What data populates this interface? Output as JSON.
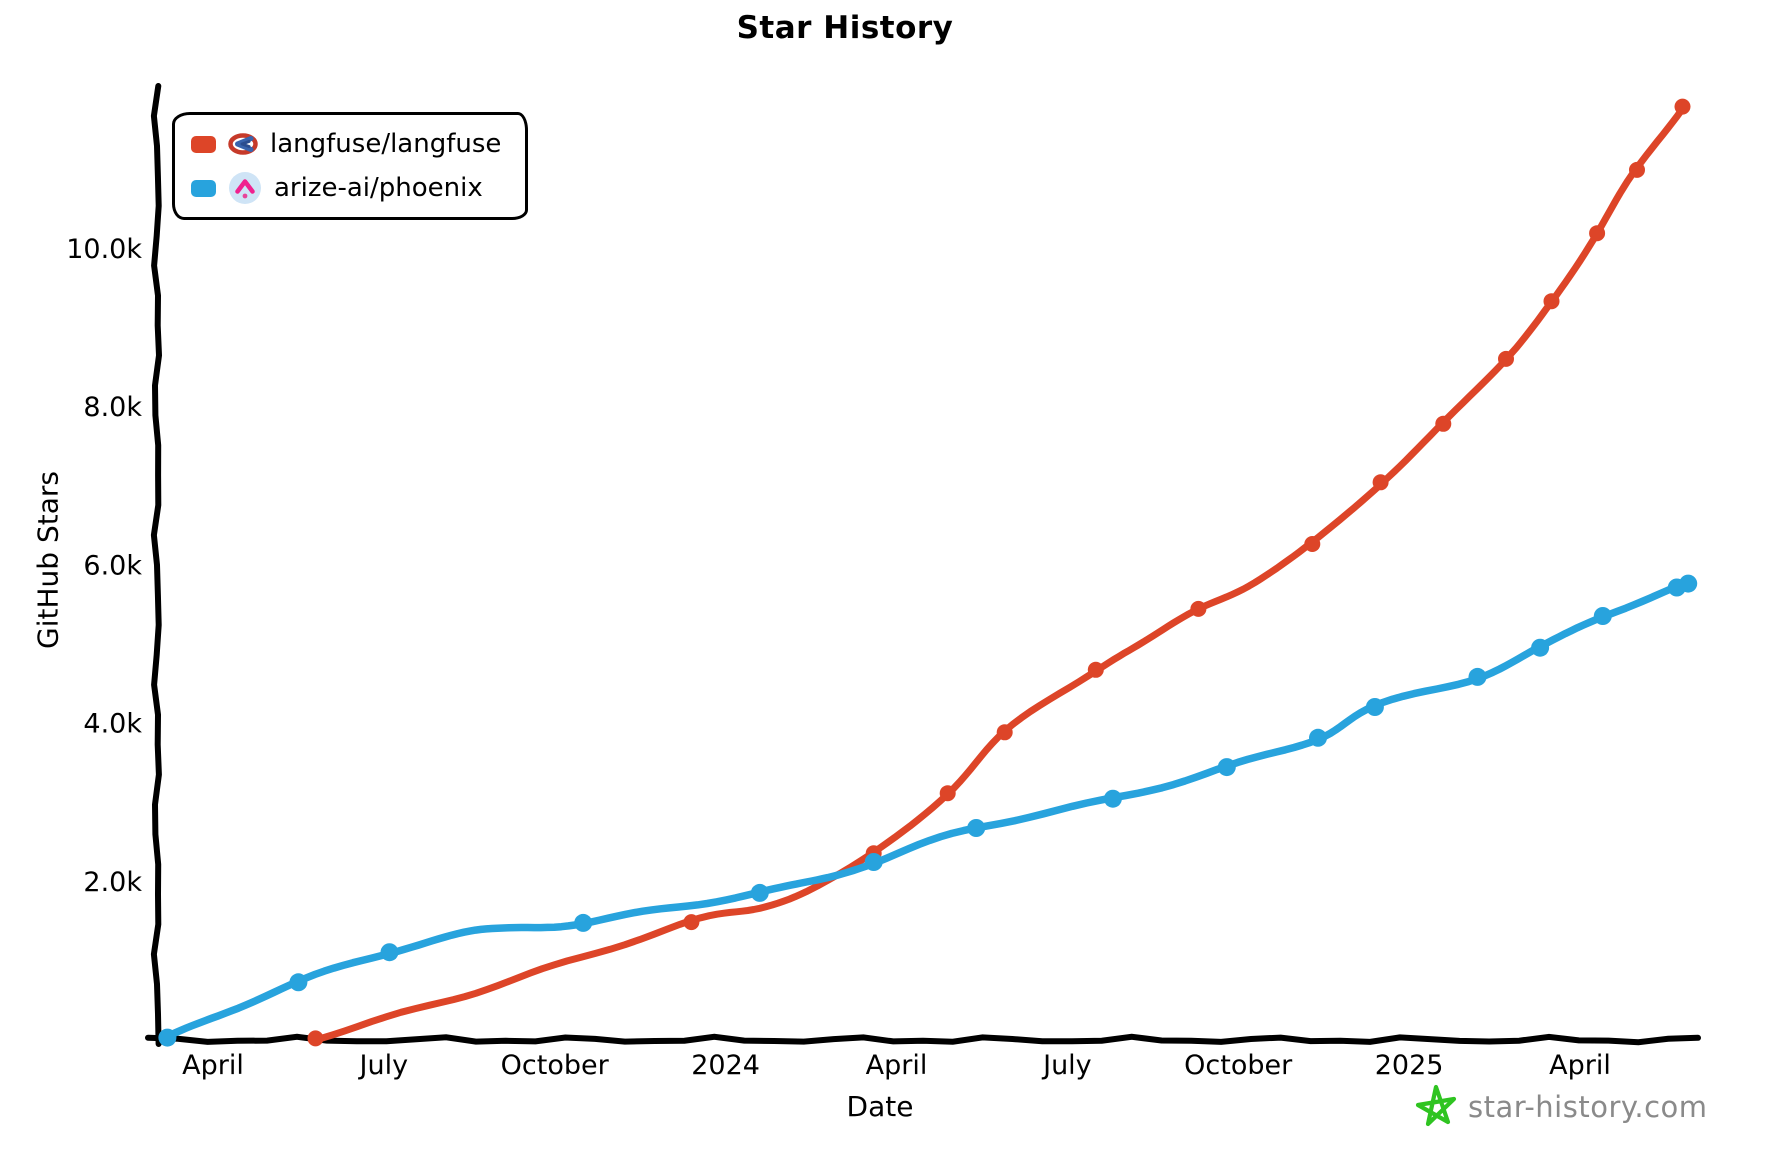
{
  "title": "Star History",
  "legend": {
    "items": [
      {
        "label": "langfuse/langfuse",
        "color": "#dd4528",
        "icon": "langfuse-logo"
      },
      {
        "label": "arize-ai/phoenix",
        "color": "#28a3dd",
        "icon": "phoenix-logo"
      }
    ]
  },
  "watermark": {
    "text": "star-history.com",
    "star_color": "#2fc421",
    "text_color": "#8a8a8a"
  },
  "chart_data": {
    "type": "line",
    "title": "Star History",
    "xlabel": "Date",
    "ylabel": "GitHub Stars",
    "grid": false,
    "legend_position": "top-left",
    "x_axis_unit": "months since 2023-03",
    "xlim_months": [
      0,
      27.3
    ],
    "ylim": [
      0,
      12100
    ],
    "x_ticks": [
      {
        "label": "April",
        "m": 1
      },
      {
        "label": "July",
        "m": 4
      },
      {
        "label": "October",
        "m": 7
      },
      {
        "label": "2024",
        "m": 10
      },
      {
        "label": "April",
        "m": 13
      },
      {
        "label": "July",
        "m": 16
      },
      {
        "label": "October",
        "m": 19
      },
      {
        "label": "2025",
        "m": 22
      },
      {
        "label": "April",
        "m": 25
      }
    ],
    "y_ticks": [
      {
        "label": "2.0k",
        "value": 2000
      },
      {
        "label": "4.0k",
        "value": 4000
      },
      {
        "label": "6.0k",
        "value": 6000
      },
      {
        "label": "8.0k",
        "value": 8000
      },
      {
        "label": "10.0k",
        "value": 10000
      }
    ],
    "series": [
      {
        "name": "langfuse/langfuse",
        "color": "#dd4528",
        "points": [
          {
            "date": "2023-05",
            "m": 2.8,
            "stars": 20,
            "dot": true
          },
          {
            "date": "2023-08",
            "m": 5.0,
            "stars": 480,
            "dot": false
          },
          {
            "date": "2023-10",
            "m": 7.0,
            "stars": 930,
            "dot": false
          },
          {
            "date": "2023-12",
            "m": 9.4,
            "stars": 1490,
            "dot": true
          },
          {
            "date": "2024-01",
            "m": 10.6,
            "stars": 1680,
            "dot": false
          },
          {
            "date": "2024-02",
            "m": 11.6,
            "stars": 1950,
            "dot": false
          },
          {
            "date": "2024-03",
            "m": 12.6,
            "stars": 2360,
            "dot": true
          },
          {
            "date": "2024-04",
            "m": 13.9,
            "stars": 3120,
            "dot": true
          },
          {
            "date": "2024-05",
            "m": 14.9,
            "stars": 3890,
            "dot": true
          },
          {
            "date": "2024-07",
            "m": 16.5,
            "stars": 4680,
            "dot": true
          },
          {
            "date": "2024-08",
            "m": 17.4,
            "stars": 5050,
            "dot": false
          },
          {
            "date": "2024-09",
            "m": 18.3,
            "stars": 5450,
            "dot": true
          },
          {
            "date": "2024-10",
            "m": 19.3,
            "stars": 5800,
            "dot": false
          },
          {
            "date": "2024-11",
            "m": 20.3,
            "stars": 6270,
            "dot": true
          },
          {
            "date": "2024-12",
            "m": 21.5,
            "stars": 7050,
            "dot": true
          },
          {
            "date": "2025-01",
            "m": 22.6,
            "stars": 7790,
            "dot": true
          },
          {
            "date": "2025-02",
            "m": 23.7,
            "stars": 8610,
            "dot": true
          },
          {
            "date": "2025-03",
            "m": 24.5,
            "stars": 9340,
            "dot": true
          },
          {
            "date": "2025-04",
            "m": 25.3,
            "stars": 10200,
            "dot": true
          },
          {
            "date": "2025-05",
            "m": 26.0,
            "stars": 11000,
            "dot": true
          },
          {
            "date": "2025-06",
            "m": 26.8,
            "stars": 11800,
            "dot": true
          }
        ]
      },
      {
        "name": "arize-ai/phoenix",
        "color": "#28a3dd",
        "points": [
          {
            "date": "2023-03",
            "m": 0.2,
            "stars": 30,
            "dot": true
          },
          {
            "date": "2023-04",
            "m": 1.2,
            "stars": 350,
            "dot": false
          },
          {
            "date": "2023-05",
            "m": 2.5,
            "stars": 730,
            "dot": true
          },
          {
            "date": "2023-07",
            "m": 4.1,
            "stars": 1110,
            "dot": true
          },
          {
            "date": "2023-08",
            "m": 5.3,
            "stars": 1330,
            "dot": false
          },
          {
            "date": "2023-09",
            "m": 6.3,
            "stars": 1420,
            "dot": false
          },
          {
            "date": "2023-10",
            "m": 7.5,
            "stars": 1480,
            "dot": true
          },
          {
            "date": "2023-12",
            "m": 9.0,
            "stars": 1670,
            "dot": false
          },
          {
            "date": "2024-01",
            "m": 10.6,
            "stars": 1860,
            "dot": true
          },
          {
            "date": "2024-02",
            "m": 11.6,
            "stars": 2020,
            "dot": false
          },
          {
            "date": "2024-03",
            "m": 12.6,
            "stars": 2250,
            "dot": true
          },
          {
            "date": "2024-05",
            "m": 14.4,
            "stars": 2680,
            "dot": true
          },
          {
            "date": "2024-07",
            "m": 16.8,
            "stars": 3050,
            "dot": true
          },
          {
            "date": "2024-09",
            "m": 18.8,
            "stars": 3450,
            "dot": true
          },
          {
            "date": "2024-11",
            "m": 20.4,
            "stars": 3820,
            "dot": true
          },
          {
            "date": "2024-12",
            "m": 21.4,
            "stars": 4210,
            "dot": true
          },
          {
            "date": "2025-02",
            "m": 23.2,
            "stars": 4590,
            "dot": true
          },
          {
            "date": "2025-03",
            "m": 24.3,
            "stars": 4960,
            "dot": true
          },
          {
            "date": "2025-04",
            "m": 25.4,
            "stars": 5360,
            "dot": true
          },
          {
            "date": "2025-05",
            "m": 26.7,
            "stars": 5720,
            "dot": true
          },
          {
            "date": "2025-06",
            "m": 26.9,
            "stars": 5770,
            "dot": true
          }
        ]
      }
    ]
  }
}
